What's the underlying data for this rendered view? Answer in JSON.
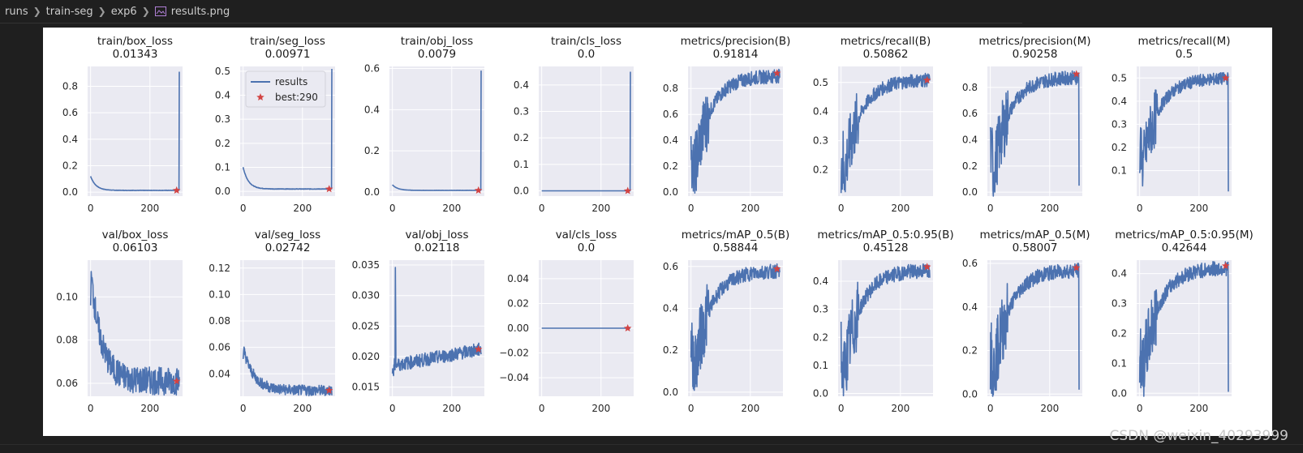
{
  "breadcrumb": {
    "items": [
      "runs",
      "train-seg",
      "exp6",
      "results.png"
    ],
    "file_icon": "image-file-icon"
  },
  "watermark": "CSDN @weixin_40293999",
  "colors": {
    "line": "#4c72b0",
    "marker": "#d24343",
    "axes_bg": "#eaeaf2",
    "grid": "#ffffff"
  },
  "chart_data": [
    {
      "type": "line",
      "title": "train/box_loss",
      "subtitle": "0.01343",
      "ylim": [
        -0.03,
        0.95
      ],
      "yticks": [
        0.0,
        0.2,
        0.4,
        0.6,
        0.8
      ],
      "ytick_labels": [
        "0.0",
        "0.2",
        "0.4",
        "0.6",
        "0.8"
      ],
      "xlim": [
        -10,
        310
      ],
      "xticks": [
        0,
        200
      ],
      "xtick_labels": [
        "0",
        "200"
      ],
      "shape": "loss_spike",
      "start": 0.12,
      "end": 0.0134,
      "spike": 0.91,
      "best_x": 290,
      "best_y": 0.0134
    },
    {
      "type": "line",
      "title": "train/seg_loss",
      "subtitle": "0.00971",
      "ylim": [
        -0.02,
        0.52
      ],
      "yticks": [
        0.0,
        0.1,
        0.2,
        0.3,
        0.4,
        0.5
      ],
      "ytick_labels": [
        "0.0",
        "0.1",
        "0.2",
        "0.3",
        "0.4",
        "0.5"
      ],
      "xlim": [
        -10,
        310
      ],
      "xticks": [
        0,
        200
      ],
      "xtick_labels": [
        "0",
        "200"
      ],
      "shape": "loss_spike",
      "start": 0.1,
      "end": 0.0097,
      "spike": 0.51,
      "best_x": 290,
      "best_y": 0.0097,
      "legend": {
        "series": "results",
        "marker": "best:290"
      }
    },
    {
      "type": "line",
      "title": "train/obj_loss",
      "subtitle": "0.0079",
      "ylim": [
        -0.02,
        0.61
      ],
      "yticks": [
        0.0,
        0.2,
        0.4,
        0.6
      ],
      "ytick_labels": [
        "0.0",
        "0.2",
        "0.4",
        "0.6"
      ],
      "xlim": [
        -10,
        310
      ],
      "xticks": [
        0,
        200
      ],
      "xtick_labels": [
        "0",
        "200"
      ],
      "shape": "loss_spike",
      "start": 0.035,
      "end": 0.0079,
      "spike": 0.59,
      "best_x": 290,
      "best_y": 0.0079
    },
    {
      "type": "line",
      "title": "train/cls_loss",
      "subtitle": "0.0",
      "ylim": [
        -0.02,
        0.47
      ],
      "yticks": [
        0.0,
        0.1,
        0.2,
        0.3,
        0.4
      ],
      "ytick_labels": [
        "0.0",
        "0.1",
        "0.2",
        "0.3",
        "0.4"
      ],
      "xlim": [
        -10,
        310
      ],
      "xticks": [
        0,
        200
      ],
      "xtick_labels": [
        "0",
        "200"
      ],
      "shape": "flat_spike",
      "start": 0.0,
      "end": 0.0,
      "spike": 0.45,
      "best_x": 290,
      "best_y": 0.0
    },
    {
      "type": "line",
      "title": "metrics/precision(B)",
      "subtitle": "0.91814",
      "ylim": [
        -0.03,
        0.97
      ],
      "yticks": [
        0.0,
        0.2,
        0.4,
        0.6,
        0.8
      ],
      "ytick_labels": [
        "0.0",
        "0.2",
        "0.4",
        "0.6",
        "0.8"
      ],
      "xlim": [
        -10,
        310
      ],
      "xticks": [
        0,
        200
      ],
      "xtick_labels": [
        "0",
        "200"
      ],
      "shape": "metric",
      "start": 0.0,
      "end": 0.9,
      "best_x": 290,
      "best_y": 0.918,
      "drop": null
    },
    {
      "type": "line",
      "title": "metrics/recall(B)",
      "subtitle": "0.50862",
      "ylim": [
        0.11,
        0.555
      ],
      "yticks": [
        0.2,
        0.3,
        0.4,
        0.5
      ],
      "ytick_labels": [
        "0.2",
        "0.3",
        "0.4",
        "0.5"
      ],
      "xlim": [
        -10,
        310
      ],
      "xticks": [
        0,
        200
      ],
      "xtick_labels": [
        "0",
        "200"
      ],
      "shape": "metric",
      "start": 0.12,
      "end": 0.51,
      "best_x": 290,
      "best_y": 0.508,
      "drop": null
    },
    {
      "type": "line",
      "title": "metrics/precision(M)",
      "subtitle": "0.90258",
      "ylim": [
        -0.03,
        0.96
      ],
      "yticks": [
        0.0,
        0.2,
        0.4,
        0.6,
        0.8
      ],
      "ytick_labels": [
        "0.0",
        "0.2",
        "0.4",
        "0.6",
        "0.8"
      ],
      "xlim": [
        -10,
        310
      ],
      "xticks": [
        0,
        200
      ],
      "xtick_labels": [
        "0",
        "200"
      ],
      "shape": "metric",
      "start": 0.0,
      "end": 0.88,
      "best_x": 290,
      "best_y": 0.902,
      "drop": 0.05
    },
    {
      "type": "line",
      "title": "metrics/recall(M)",
      "subtitle": "0.5",
      "ylim": [
        -0.01,
        0.55
      ],
      "yticks": [
        0.1,
        0.2,
        0.3,
        0.4,
        0.5
      ],
      "ytick_labels": [
        "0.1",
        "0.2",
        "0.3",
        "0.4",
        "0.5"
      ],
      "xlim": [
        -10,
        310
      ],
      "xticks": [
        0,
        200
      ],
      "xtick_labels": [
        "0",
        "200"
      ],
      "shape": "metric",
      "start": 0.05,
      "end": 0.5,
      "best_x": 290,
      "best_y": 0.5,
      "drop": 0.01
    },
    {
      "type": "line",
      "title": "val/box_loss",
      "subtitle": "0.06103",
      "ylim": [
        0.054,
        0.117
      ],
      "yticks": [
        0.06,
        0.08,
        0.1
      ],
      "ytick_labels": [
        "0.06",
        "0.08",
        "0.10"
      ],
      "xlim": [
        -10,
        310
      ],
      "xticks": [
        0,
        200
      ],
      "xtick_labels": [
        "0",
        "200"
      ],
      "shape": "val_loss",
      "start": 0.113,
      "end": 0.061,
      "best_x": 290,
      "best_y": 0.061
    },
    {
      "type": "line",
      "title": "val/seg_loss",
      "subtitle": "0.02742",
      "ylim": [
        0.023,
        0.126
      ],
      "yticks": [
        0.04,
        0.06,
        0.08,
        0.1,
        0.12
      ],
      "ytick_labels": [
        "0.04",
        "0.06",
        "0.08",
        "0.10",
        "0.12"
      ],
      "xlim": [
        -10,
        310
      ],
      "xticks": [
        0,
        200
      ],
      "xtick_labels": [
        "0",
        "200"
      ],
      "shape": "val_loss",
      "start": 0.06,
      "end": 0.0274,
      "best_x": 290,
      "best_y": 0.0274
    },
    {
      "type": "line",
      "title": "val/obj_loss",
      "subtitle": "0.02118",
      "ylim": [
        0.0135,
        0.0358
      ],
      "yticks": [
        0.015,
        0.02,
        0.025,
        0.03,
        0.035
      ],
      "ytick_labels": [
        "0.015",
        "0.020",
        "0.025",
        "0.030",
        "0.035"
      ],
      "xlim": [
        -10,
        310
      ],
      "xticks": [
        0,
        200
      ],
      "xtick_labels": [
        "0",
        "200"
      ],
      "shape": "val_obj",
      "start": 0.02,
      "end": 0.0212,
      "best_x": 290,
      "best_y": 0.0212
    },
    {
      "type": "line",
      "title": "val/cls_loss",
      "subtitle": "0.0",
      "ylim": [
        -0.055,
        0.055
      ],
      "yticks": [
        -0.04,
        -0.02,
        0.0,
        0.02,
        0.04
      ],
      "ytick_labels": [
        "−0.04",
        "−0.02",
        "0.00",
        "0.02",
        "0.04"
      ],
      "xlim": [
        -10,
        310
      ],
      "xticks": [
        0,
        200
      ],
      "xtick_labels": [
        "0",
        "200"
      ],
      "shape": "flat",
      "start": 0.0,
      "end": 0.0,
      "best_x": 290,
      "best_y": 0.0
    },
    {
      "type": "line",
      "title": "metrics/mAP_0.5(B)",
      "subtitle": "0.58844",
      "ylim": [
        -0.02,
        0.63
      ],
      "yticks": [
        0.0,
        0.2,
        0.4,
        0.6
      ],
      "ytick_labels": [
        "0.0",
        "0.2",
        "0.4",
        "0.6"
      ],
      "xlim": [
        -10,
        310
      ],
      "xticks": [
        0,
        200
      ],
      "xtick_labels": [
        "0",
        "200"
      ],
      "shape": "metric",
      "start": 0.0,
      "end": 0.58,
      "best_x": 290,
      "best_y": 0.588,
      "drop": null
    },
    {
      "type": "line",
      "title": "metrics/mAP_0.5:0.95(B)",
      "subtitle": "0.45128",
      "ylim": [
        -0.01,
        0.475
      ],
      "yticks": [
        0.0,
        0.1,
        0.2,
        0.3,
        0.4
      ],
      "ytick_labels": [
        "0.0",
        "0.1",
        "0.2",
        "0.3",
        "0.4"
      ],
      "xlim": [
        -10,
        310
      ],
      "xticks": [
        0,
        200
      ],
      "xtick_labels": [
        "0",
        "200"
      ],
      "shape": "metric",
      "start": 0.0,
      "end": 0.44,
      "best_x": 290,
      "best_y": 0.451,
      "drop": null
    },
    {
      "type": "line",
      "title": "metrics/mAP_0.5(M)",
      "subtitle": "0.58007",
      "ylim": [
        -0.01,
        0.615
      ],
      "yticks": [
        0.0,
        0.2,
        0.4,
        0.6
      ],
      "ytick_labels": [
        "0.0",
        "0.2",
        "0.4",
        "0.6"
      ],
      "xlim": [
        -10,
        310
      ],
      "xticks": [
        0,
        200
      ],
      "xtick_labels": [
        "0",
        "200"
      ],
      "shape": "metric",
      "start": 0.0,
      "end": 0.57,
      "best_x": 290,
      "best_y": 0.58,
      "drop": 0.02
    },
    {
      "type": "line",
      "title": "metrics/mAP_0.5:0.95(M)",
      "subtitle": "0.42644",
      "ylim": [
        -0.01,
        0.445
      ],
      "yticks": [
        0.0,
        0.1,
        0.2,
        0.3,
        0.4
      ],
      "ytick_labels": [
        "0.0",
        "0.1",
        "0.2",
        "0.3",
        "0.4"
      ],
      "xlim": [
        -10,
        310
      ],
      "xticks": [
        0,
        200
      ],
      "xtick_labels": [
        "0",
        "200"
      ],
      "shape": "metric",
      "start": 0.0,
      "end": 0.42,
      "best_x": 290,
      "best_y": 0.426,
      "drop": 0.005
    }
  ]
}
